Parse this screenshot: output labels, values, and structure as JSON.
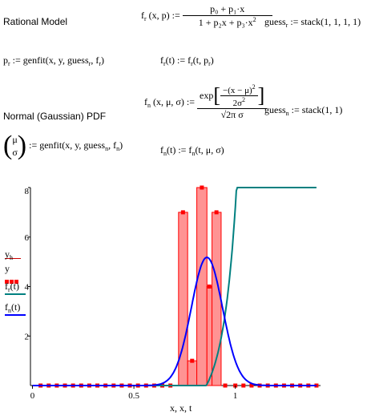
{
  "rational": {
    "section_label": "Rational Model",
    "model_lhs": "f",
    "model_lhs_sub": "r",
    "model_args": "(x, p) :=",
    "numerator": "p₀ + p₁·x",
    "denominator_a": "1 + p₂x + p₃·x",
    "denominator_sup": "2",
    "guess": "guess",
    "guess_sub": "r",
    "guess_value": ":= stack(1, 1, 1, 1)",
    "fit_lhs": "p",
    "fit_lhs_sub": "r",
    "fit_rhs": ":= genfit(x, y, guess",
    "fit_rhs_sub": "r",
    "fit_rhs_tail": ", f",
    "fit_rhs_tail_sub": "r",
    "fit_close": ")",
    "fun_def": "f",
    "fun_def_sub": "r",
    "fun_def_mid": "(t) := f",
    "fun_def_mid_sub": "r",
    "fun_def_tail": "(t, p",
    "fun_def_tail_sub": "r",
    "fun_def_close": ")"
  },
  "normal": {
    "section_label": "Normal (Gaussian) PDF",
    "model_lhs": "f",
    "model_lhs_sub": "n",
    "model_args": "(x, μ, σ) :=",
    "exp_label": "exp",
    "exp_numer": "−(x − μ)",
    "exp_numer_sup": "2",
    "exp_denom": "2σ",
    "exp_denom_sup": "2",
    "denominator": "√2π σ",
    "guess": "guess",
    "guess_sub": "n",
    "guess_value": ":= stack(1, 1)",
    "vec_top": "μ",
    "vec_bottom": "σ",
    "fit_rhs": ":= genfit(x, y, guess",
    "fit_rhs_sub": "n",
    "fit_rhs_tail": ", f",
    "fit_rhs_tail_sub": "n",
    "fit_close": ")",
    "fun_def": "f",
    "fun_def_sub": "n",
    "fun_def_mid": "(t) := f",
    "fun_def_mid_sub": "n",
    "fun_def_tail": "(t, μ, σ)"
  },
  "legend": [
    {
      "label": "y",
      "sub": "h",
      "color": "#cc0000",
      "style": "line"
    },
    {
      "label": "y",
      "sub": "",
      "color": "#ff0000",
      "style": "dots"
    },
    {
      "label": "f",
      "sub": "r",
      "tail": "(t)",
      "color": "#008080",
      "style": "line"
    },
    {
      "label": "f",
      "sub": "n",
      "tail": "(t)",
      "color": "#0000ff",
      "style": "line"
    }
  ],
  "chart_data": {
    "type": "bar",
    "xlabel": "x, x, t",
    "xlim": [
      -0.01,
      1.42
    ],
    "ylim": [
      0,
      8
    ],
    "x_ticks": [
      "0",
      "0.5",
      "1"
    ],
    "x_tick_values": [
      0,
      0.5,
      1
    ],
    "y_ticks": [
      "2",
      "4",
      "6",
      "8"
    ],
    "y_tick_values": [
      2,
      4,
      6,
      8
    ],
    "histogram": {
      "color": "#ff8080",
      "edge_color": "#ff0000",
      "bin_edges": [
        0.72,
        0.765,
        0.81,
        0.86,
        0.885,
        0.93,
        0.975
      ],
      "heights": [
        7,
        1,
        8,
        4,
        7,
        0
      ]
    },
    "points": {
      "color": "#ff0000",
      "x": [
        0.04,
        0.08,
        0.12,
        0.16,
        0.2,
        0.24,
        0.28,
        0.32,
        0.36,
        0.4,
        0.44,
        0.48,
        0.52,
        0.56,
        0.6,
        0.64,
        0.68,
        0.742,
        0.787,
        0.835,
        0.872,
        0.907,
        0.95,
        1.0,
        1.04,
        1.08,
        1.12,
        1.16,
        1.2,
        1.24,
        1.28,
        1.32,
        1.36,
        1.4
      ],
      "y": [
        0,
        0,
        0,
        0,
        0,
        0,
        0,
        0,
        0,
        0,
        0,
        0,
        0,
        0,
        0,
        0,
        0,
        7,
        1,
        8,
        4,
        7,
        0,
        0,
        0,
        0,
        0,
        0,
        0,
        0,
        0,
        0,
        0,
        0
      ]
    },
    "series": [
      {
        "name": "f_r(t)",
        "color": "#008080",
        "model": "rational",
        "params": {
          "p0": -0.9,
          "p1": 1.05,
          "p2": -1.74,
          "p3": 0.7608
        }
      },
      {
        "name": "f_n(t)",
        "color": "#0000ff",
        "model": "normal",
        "params": {
          "mu": 0.86,
          "sigma": 0.077
        }
      }
    ]
  }
}
